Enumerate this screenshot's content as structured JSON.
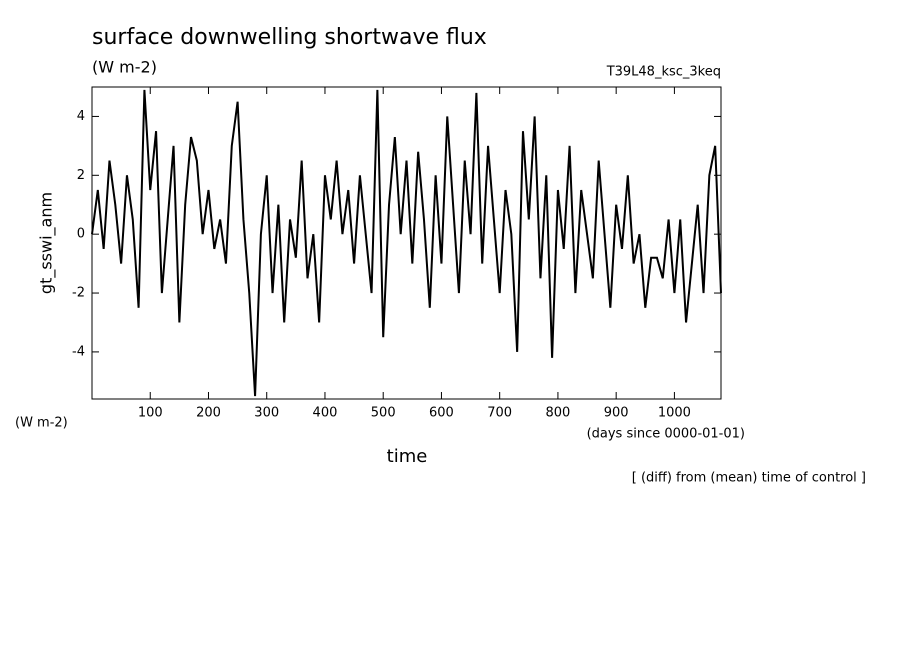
{
  "chart_data": {
    "type": "line",
    "title": "surface downwelling shortwave flux",
    "subtitle": "(W m-2)",
    "annotation_right": "T39L48_ksc_3keq",
    "y_label": "gt_sswi_anm",
    "y_units": "(W m-2)",
    "x_label": "time",
    "x_units": "(days since 0000-01-01)",
    "footnote": "[ (diff) from (mean) time of control ]",
    "xlim": [
      0,
      1080
    ],
    "ylim": [
      -5.6,
      5
    ],
    "xticks": [
      100,
      200,
      300,
      400,
      500,
      600,
      700,
      800,
      900,
      1000
    ],
    "yticks": [
      -4,
      -2,
      0,
      2,
      4
    ],
    "series": [
      {
        "name": "gt_sswi_anm",
        "color": "#000000",
        "x": [
          0,
          10,
          20,
          30,
          40,
          50,
          60,
          70,
          80,
          90,
          100,
          110,
          120,
          130,
          140,
          150,
          160,
          170,
          180,
          190,
          200,
          210,
          220,
          230,
          240,
          250,
          260,
          270,
          280,
          290,
          300,
          310,
          320,
          330,
          340,
          350,
          360,
          370,
          380,
          390,
          400,
          410,
          420,
          430,
          440,
          450,
          460,
          470,
          480,
          490,
          500,
          510,
          520,
          530,
          540,
          550,
          560,
          570,
          580,
          590,
          600,
          610,
          620,
          630,
          640,
          650,
          660,
          670,
          680,
          690,
          700,
          710,
          720,
          730,
          740,
          750,
          760,
          770,
          780,
          790,
          800,
          810,
          820,
          830,
          840,
          850,
          860,
          870,
          880,
          890,
          900,
          910,
          920,
          930,
          940,
          950,
          960,
          970,
          980,
          990,
          1000,
          1010,
          1020,
          1030,
          1040,
          1050,
          1060,
          1070,
          1080
        ],
        "values": [
          0,
          1.5,
          -0.5,
          2.5,
          1,
          -1,
          2,
          0.5,
          -2.5,
          4.9,
          1.5,
          3.5,
          -2,
          0.5,
          3,
          -3,
          1,
          3.3,
          2.5,
          0,
          1.5,
          -0.5,
          0.5,
          -1,
          3,
          4.5,
          0.5,
          -2,
          -5.5,
          0,
          2,
          -2,
          1,
          -3,
          0.5,
          -0.8,
          2.5,
          -1.5,
          0,
          -3,
          2,
          0.5,
          2.5,
          0,
          1.5,
          -1,
          2,
          0,
          -2,
          4.9,
          -3.5,
          1,
          3.3,
          0,
          2.5,
          -1,
          2.8,
          0.5,
          -2.5,
          2,
          -1,
          4,
          1,
          -2,
          2.5,
          0,
          4.8,
          -1,
          3,
          0.5,
          -2,
          1.5,
          0,
          -4,
          3.5,
          0.5,
          4,
          -1.5,
          2,
          -4.2,
          1.5,
          -0.5,
          3,
          -2,
          1.5,
          0,
          -1.5,
          2.5,
          0,
          -2.5,
          1,
          -0.5,
          2,
          -1,
          0,
          -2.5,
          -0.8,
          -0.8,
          -1.5,
          0.5,
          -2,
          0.5,
          -3,
          -1,
          1,
          -2,
          2,
          3,
          -2
        ]
      }
    ]
  }
}
